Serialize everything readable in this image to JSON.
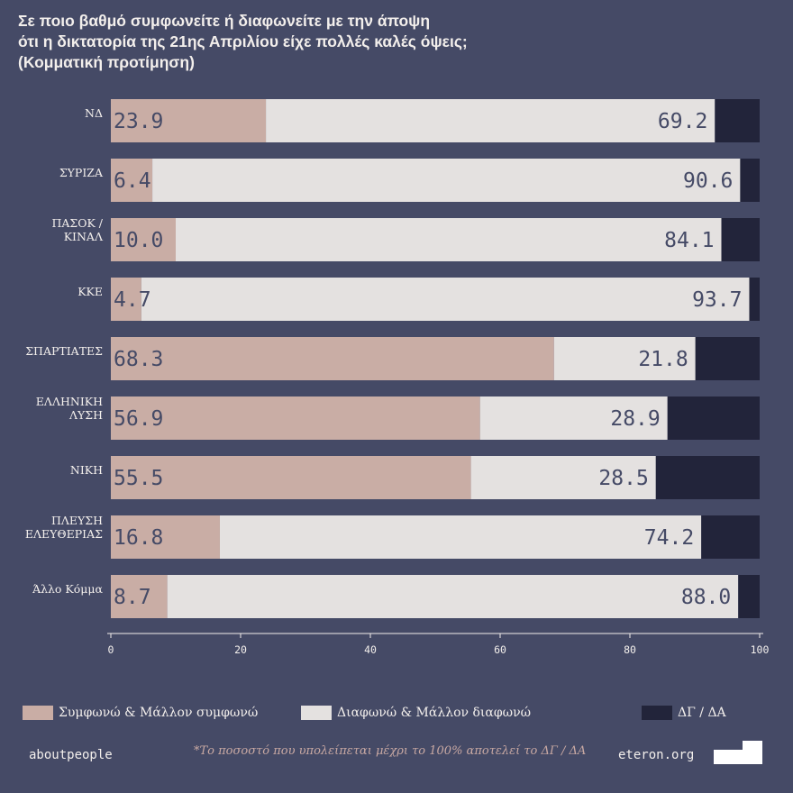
{
  "title_lines": [
    "Σε ποιο βαθμό συμφωνείτε ή διαφωνείτε με την άποψη",
    "ότι η δικτατορία της 21ης Απριλίου είχε πολλές καλές όψεις;",
    "(Κομματική προτίμηση)"
  ],
  "colors": {
    "background": "#454a66",
    "agree": "#c9ada5",
    "disagree": "#e4e1e0",
    "dk": "#22243a",
    "text_light": "#f3efec",
    "value_text": "#454a66"
  },
  "chart_data": {
    "type": "bar",
    "orientation": "horizontal",
    "stacked": true,
    "categories": [
      [
        "ΝΔ"
      ],
      [
        "ΣΥΡΙΖΑ"
      ],
      [
        "ΠΑΣΟΚ /",
        "ΚΙΝΑΛ"
      ],
      [
        "ΚΚΕ"
      ],
      [
        "ΣΠΑΡΤΙΑΤΕΣ"
      ],
      [
        "ΕΛΛΗΝΙΚΗ",
        "ΛΥΣΗ"
      ],
      [
        "ΝΙΚΗ"
      ],
      [
        "ΠΛΕΥΣΗ",
        "ΕΛΕΥΘΕΡΙΑΣ"
      ],
      [
        "Άλλο Κόμμα"
      ]
    ],
    "series": [
      {
        "name": "Συμφωνώ & Μάλλον συμφωνώ",
        "values": [
          23.9,
          6.4,
          10.0,
          4.7,
          68.3,
          56.9,
          55.5,
          16.8,
          8.7
        ],
        "labels": [
          "23.9",
          "6.4",
          "10.0",
          "4.7",
          "68.3",
          "56.9",
          "55.5",
          "16.8",
          "8.7"
        ]
      },
      {
        "name": "Διαφωνώ & Μάλλον διαφωνώ",
        "values": [
          69.2,
          90.6,
          84.1,
          93.7,
          21.8,
          28.9,
          28.5,
          74.2,
          88.0
        ],
        "labels": [
          "69.2",
          "90.6",
          "84.1",
          "93.7",
          "21.8",
          "28.9",
          "28.5",
          "74.2",
          "88.0"
        ]
      },
      {
        "name": "ΔΓ / ΔΑ",
        "values": [
          6.9,
          3.0,
          5.9,
          1.6,
          9.9,
          14.2,
          16.0,
          9.0,
          3.3
        ]
      }
    ],
    "xlim": [
      0,
      100
    ],
    "xticks": [
      "0",
      "20",
      "40",
      "60",
      "80",
      "100"
    ]
  },
  "footer": {
    "left": "aboutpeople",
    "note": "*Το ποσοστό που υπολείπεται μέχρι το 100% αποτελεί το ΔΓ / ΔΑ",
    "right": "eteron.org"
  }
}
